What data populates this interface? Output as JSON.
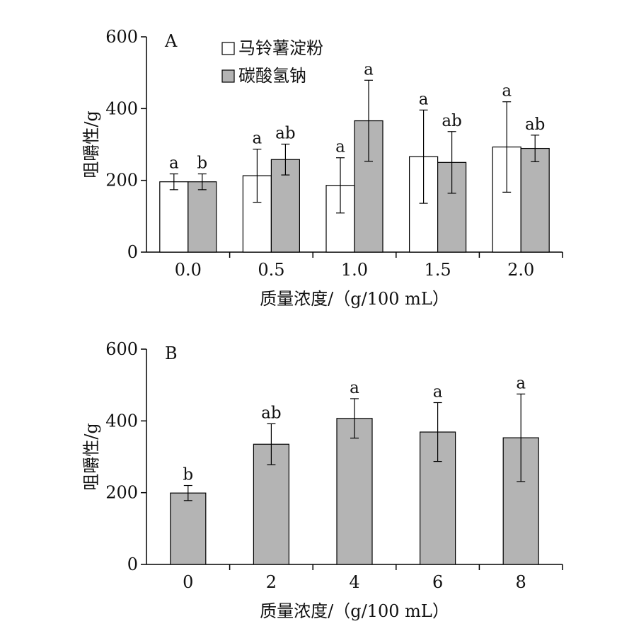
{
  "chart_data": [
    {
      "type": "bar",
      "panel_label": "A",
      "categories": [
        "0.0",
        "0.5",
        "1.0",
        "1.5",
        "2.0"
      ],
      "xlabel": "质量浓度/（g/100 mL）",
      "ylabel": "咀嚼性/g",
      "ylim": [
        0,
        600
      ],
      "yticks": [
        "0",
        "200",
        "400",
        "600"
      ],
      "legend_position": "top-left",
      "series": [
        {
          "name": "马铃薯淀粉",
          "color": "#ffffff",
          "values": [
            196,
            213,
            186,
            266,
            293
          ],
          "errors": [
            22,
            74,
            77,
            130,
            126
          ],
          "letters": [
            "a",
            "a",
            "a",
            "a",
            "a"
          ]
        },
        {
          "name": "碳酸氢钠",
          "color": "#b4b4b4",
          "values": [
            196,
            258,
            366,
            250,
            289
          ],
          "errors": [
            22,
            43,
            113,
            86,
            37
          ],
          "letters": [
            "b",
            "ab",
            "a",
            "ab",
            "ab"
          ]
        }
      ]
    },
    {
      "type": "bar",
      "panel_label": "B",
      "categories": [
        "0",
        "2",
        "4",
        "6",
        "8"
      ],
      "xlabel": "质量浓度/（g/100 mL）",
      "ylabel": "咀嚼性/g",
      "ylim": [
        0,
        600
      ],
      "yticks": [
        "0",
        "200",
        "400",
        "600"
      ],
      "series": [
        {
          "color": "#b4b4b4",
          "values": [
            199,
            335,
            407,
            369,
            353
          ],
          "errors": [
            21,
            57,
            55,
            82,
            122
          ],
          "letters": [
            "b",
            "ab",
            "a",
            "a",
            "a"
          ]
        }
      ]
    }
  ]
}
